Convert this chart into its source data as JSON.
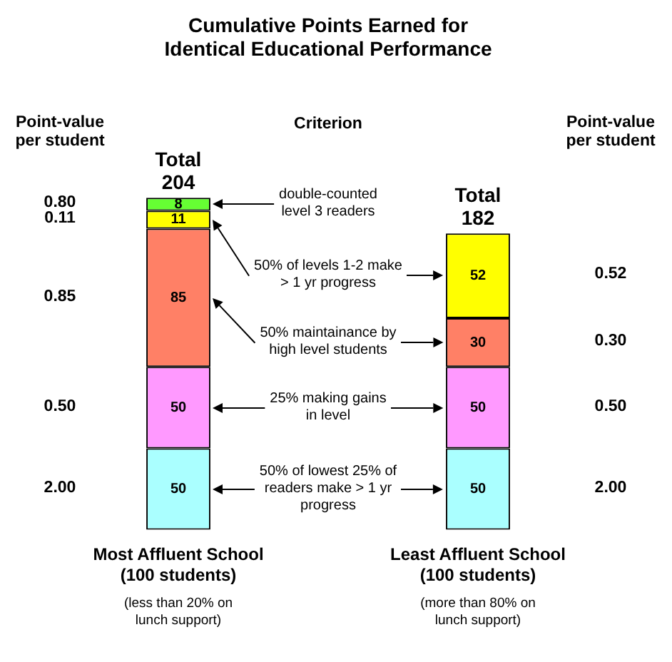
{
  "chart_data": {
    "type": "bar",
    "title": "Cumulative Points Earned for\nIdentical Educational Performance",
    "categories": [
      "Most Affluent School\n(100 students)",
      "Least Affluent School\n(100 students)"
    ],
    "stacked": true,
    "data_labels": true,
    "legend": false,
    "grid": false,
    "series": [
      {
        "color": "#aaffff",
        "values": [
          50,
          50
        ]
      },
      {
        "color": "#ff99ff",
        "values": [
          50,
          50
        ]
      },
      {
        "color": "#ff8066",
        "values": [
          85,
          30
        ]
      },
      {
        "color": "#ffff00",
        "values": [
          11,
          52
        ]
      },
      {
        "color": "#66ff33",
        "values": [
          8,
          null
        ]
      }
    ],
    "totals": [
      "Total\n204",
      "Total\n182"
    ],
    "annotations": [
      "Point-value\nper student",
      "Point-value\nper student",
      "Criterion",
      "(less than 20% on\nlunch support)",
      "(more than 80% on\nlunch support)",
      "50% of lowest 25% of\nreaders make > 1 yr\nprogress",
      "25% making gains\nin level",
      "50% maintainance by\nhigh level students",
      "50% of levels 1-2 make\n> 1 yr progress",
      "double-counted\nlevel 3 readers",
      "2.00",
      "0.50",
      "0.85",
      "0.11",
      "0.80",
      "2.00",
      "0.50",
      "0.30",
      "0.52"
    ]
  }
}
